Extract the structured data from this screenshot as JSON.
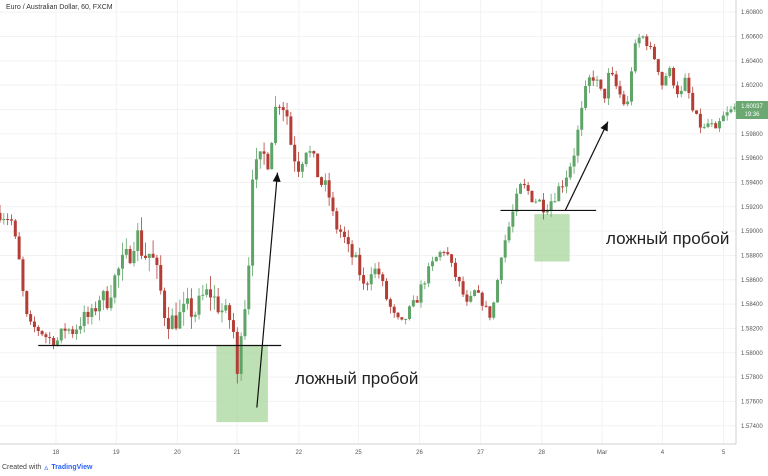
{
  "header": {
    "title": "Euro / Australian Dollar, 60, FXCM"
  },
  "footer": {
    "created_with": "Created with",
    "brand": "TradingView"
  },
  "price_badge": {
    "price": "1.60037",
    "time": "19:36"
  },
  "annotations": {
    "left_label": "ложный пробой",
    "right_label": "ложный пробой"
  },
  "colors": {
    "up": "#5ea467",
    "down": "#b43d36",
    "zone": "#a8d59c",
    "grid": "#f2f2f2",
    "badge": "#6ba872"
  },
  "chart_data": {
    "type": "candlestick",
    "title": "Euro / Australian Dollar, 60, FXCM",
    "ylim": [
      1.5725,
      1.609
    ],
    "xlim": [
      0,
      100
    ],
    "y_ticks": [
      "1.57400",
      "1.57600",
      "1.57800",
      "1.58000",
      "1.58200",
      "1.58400",
      "1.58600",
      "1.58800",
      "1.59000",
      "1.59200",
      "1.59400",
      "1.59600",
      "1.59800",
      "1.60000",
      "1.60200",
      "1.60400",
      "1.60600",
      "1.60800"
    ],
    "x_ticks": [
      {
        "label": "18",
        "x": 7.6
      },
      {
        "label": "19",
        "x": 15.8
      },
      {
        "label": "20",
        "x": 24.1
      },
      {
        "label": "21",
        "x": 32.2
      },
      {
        "label": "22",
        "x": 40.6
      },
      {
        "label": "25",
        "x": 48.7
      },
      {
        "label": "26",
        "x": 57.0
      },
      {
        "label": "27",
        "x": 65.3
      },
      {
        "label": "28",
        "x": 73.6
      },
      {
        "label": "Mar",
        "x": 81.8
      },
      {
        "label": "4",
        "x": 90.0
      },
      {
        "label": "5",
        "x": 98.3
      }
    ],
    "support_lines": [
      {
        "x0": 5.2,
        "x1": 38.2,
        "y": 1.5806
      },
      {
        "x0": 68.0,
        "x1": 81.0,
        "y": 1.5917
      }
    ],
    "false_breakout_zones": [
      {
        "x0": 29.4,
        "x1": 36.4,
        "y0": 1.5743,
        "y1": 1.5806
      },
      {
        "x0": 72.6,
        "x1": 77.4,
        "y0": 1.5875,
        "y1": 1.5914
      }
    ],
    "arrows": [
      {
        "x0": 34.9,
        "y0": 1.5755,
        "x1": 37.7,
        "y1": 1.5948
      },
      {
        "x0": 76.8,
        "y0": 1.5917,
        "x1": 82.6,
        "y1": 1.599
      }
    ],
    "close_path": [
      [
        0.0,
        1.5915
      ],
      [
        1.5,
        1.591
      ],
      [
        2.5,
        1.588
      ],
      [
        3.1,
        1.585
      ],
      [
        3.6,
        1.583
      ],
      [
        4.2,
        1.5822
      ],
      [
        5.5,
        1.5818
      ],
      [
        6.5,
        1.5812
      ],
      [
        7.8,
        1.581
      ],
      [
        8.8,
        1.582
      ],
      [
        10.0,
        1.5818
      ],
      [
        11.2,
        1.5828
      ],
      [
        12.5,
        1.583
      ],
      [
        13.5,
        1.5846
      ],
      [
        14.5,
        1.5843
      ],
      [
        15.5,
        1.586
      ],
      [
        16.5,
        1.5872
      ],
      [
        17.5,
        1.588
      ],
      [
        18.5,
        1.59
      ],
      [
        19.5,
        1.588
      ],
      [
        20.5,
        1.5882
      ],
      [
        21.5,
        1.586
      ],
      [
        22.5,
        1.583
      ],
      [
        23.5,
        1.5826
      ],
      [
        24.5,
        1.583
      ],
      [
        25.5,
        1.5836
      ],
      [
        26.5,
        1.5833
      ],
      [
        27.5,
        1.5845
      ],
      [
        28.5,
        1.585
      ],
      [
        29.5,
        1.584
      ],
      [
        30.5,
        1.5832
      ],
      [
        31.5,
        1.5826
      ],
      [
        32.0,
        1.5805
      ],
      [
        32.4,
        1.576
      ],
      [
        32.7,
        1.582
      ],
      [
        33.2,
        1.5838
      ],
      [
        33.7,
        1.5858
      ],
      [
        34.2,
        1.595
      ],
      [
        34.7,
        1.595
      ],
      [
        35.3,
        1.5957
      ],
      [
        35.9,
        1.5962
      ],
      [
        36.5,
        1.5958
      ],
      [
        37.1,
        1.5988
      ],
      [
        37.7,
        1.601
      ],
      [
        38.3,
        1.6005
      ],
      [
        38.9,
        1.6
      ],
      [
        39.5,
        1.5973
      ],
      [
        40.1,
        1.596
      ],
      [
        40.7,
        1.5952
      ],
      [
        41.5,
        1.597
      ],
      [
        42.5,
        1.596
      ],
      [
        43.5,
        1.594
      ],
      [
        44.5,
        1.5935
      ],
      [
        45.5,
        1.5905
      ],
      [
        46.5,
        1.5898
      ],
      [
        47.5,
        1.5882
      ],
      [
        48.5,
        1.5874
      ],
      [
        49.5,
        1.5852
      ],
      [
        50.5,
        1.587
      ],
      [
        51.5,
        1.5865
      ],
      [
        52.5,
        1.5845
      ],
      [
        53.5,
        1.583
      ],
      [
        54.5,
        1.5822
      ],
      [
        55.5,
        1.5833
      ],
      [
        56.5,
        1.5842
      ],
      [
        57.5,
        1.5858
      ],
      [
        58.5,
        1.587
      ],
      [
        59.5,
        1.588
      ],
      [
        60.5,
        1.5886
      ],
      [
        61.5,
        1.5868
      ],
      [
        62.5,
        1.5855
      ],
      [
        63.5,
        1.5838
      ],
      [
        64.5,
        1.585
      ],
      [
        65.5,
        1.5842
      ],
      [
        66.5,
        1.583
      ],
      [
        67.3,
        1.5845
      ],
      [
        68.0,
        1.588
      ],
      [
        69.0,
        1.59
      ],
      [
        70.0,
        1.5922
      ],
      [
        70.8,
        1.5937
      ],
      [
        71.6,
        1.5934
      ],
      [
        72.4,
        1.5927
      ],
      [
        73.2,
        1.5925
      ],
      [
        74.0,
        1.592
      ],
      [
        74.8,
        1.5925
      ],
      [
        75.6,
        1.5932
      ],
      [
        76.4,
        1.594
      ],
      [
        77.2,
        1.595
      ],
      [
        78.0,
        1.5965
      ],
      [
        78.8,
        1.599
      ],
      [
        79.6,
        1.6015
      ],
      [
        80.4,
        1.603
      ],
      [
        81.2,
        1.602
      ],
      [
        82.0,
        1.6008
      ],
      [
        82.8,
        1.603
      ],
      [
        83.6,
        1.602
      ],
      [
        84.4,
        1.601
      ],
      [
        85.2,
        1.6
      ],
      [
        86.0,
        1.6045
      ],
      [
        86.8,
        1.6058
      ],
      [
        87.6,
        1.606
      ],
      [
        88.4,
        1.6048
      ],
      [
        89.2,
        1.604
      ],
      [
        90.0,
        1.602
      ],
      [
        90.8,
        1.6034
      ],
      [
        91.6,
        1.6022
      ],
      [
        92.4,
        1.601
      ],
      [
        93.2,
        1.6025
      ],
      [
        94.0,
        1.6
      ],
      [
        94.8,
        1.599
      ],
      [
        95.6,
        1.5983
      ],
      [
        96.4,
        1.599
      ],
      [
        97.2,
        1.598
      ],
      [
        98.0,
        1.5992
      ],
      [
        100.0,
        1.6002
      ]
    ],
    "range_path": [
      [
        0.0,
        0.002
      ],
      [
        4.0,
        0.0012
      ],
      [
        18.5,
        0.0035
      ],
      [
        32.4,
        0.003
      ],
      [
        34.5,
        0.003
      ],
      [
        45.0,
        0.002
      ],
      [
        60.0,
        0.0015
      ],
      [
        66.0,
        0.0012
      ],
      [
        70.0,
        0.0018
      ],
      [
        78.5,
        0.002
      ],
      [
        86.5,
        0.0016
      ],
      [
        100.0,
        0.0014
      ]
    ]
  }
}
